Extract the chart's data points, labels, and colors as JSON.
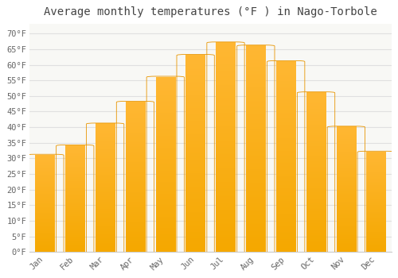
{
  "title": "Average monthly temperatures (°F ) in Nago-Torbole",
  "months": [
    "Jan",
    "Feb",
    "Mar",
    "Apr",
    "May",
    "Jun",
    "Jul",
    "Aug",
    "Sep",
    "Oct",
    "Nov",
    "Dec"
  ],
  "values": [
    31,
    34,
    41,
    48,
    56,
    63,
    67,
    66,
    61,
    51,
    40,
    32
  ],
  "ylim": [
    0,
    73
  ],
  "yticks": [
    0,
    5,
    10,
    15,
    20,
    25,
    30,
    35,
    40,
    45,
    50,
    55,
    60,
    65,
    70
  ],
  "ytick_labels": [
    "0°F",
    "5°F",
    "10°F",
    "15°F",
    "20°F",
    "25°F",
    "30°F",
    "35°F",
    "40°F",
    "45°F",
    "50°F",
    "55°F",
    "60°F",
    "65°F",
    "70°F"
  ],
  "title_fontsize": 10,
  "tick_fontsize": 7.5,
  "background_color": "#ffffff",
  "plot_bg_color": "#f8f8f5",
  "grid_color": "#e0e0e0",
  "bar_color_top": "#FFB733",
  "bar_color_bottom": "#F5A800",
  "bar_edge_color": "#E89500",
  "bar_width": 0.65
}
